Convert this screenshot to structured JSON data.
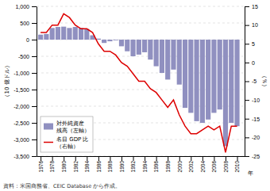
{
  "chart_data": {
    "type": "bar",
    "x": [
      1976,
      1977,
      1978,
      1979,
      1980,
      1981,
      1982,
      1983,
      1984,
      1985,
      1986,
      1987,
      1988,
      1989,
      1990,
      1991,
      1992,
      1993,
      1994,
      1995,
      1996,
      1997,
      1998,
      1999,
      2000,
      2001,
      2002,
      2003,
      2004,
      2005,
      2006,
      2007,
      2008,
      2009,
      2010
    ],
    "series": [
      {
        "name": "対外純資産\n残高（左軸）",
        "type": "bar",
        "color": "#9090c0",
        "values": [
          150,
          170,
          350,
          380,
          390,
          350,
          380,
          350,
          320,
          130,
          30,
          -100,
          -50,
          -20,
          -200,
          -350,
          -500,
          -450,
          -380,
          -600,
          -800,
          -1000,
          -1200,
          -900,
          -1350,
          -2050,
          -2200,
          -2450,
          -2500,
          -2400,
          -2200,
          -2100,
          -3200,
          -2500,
          -2600
        ]
      },
      {
        "name": "名目 GDP 比\n（右軸）",
        "type": "line",
        "color": "#dd0000",
        "axis": "y2",
        "values": [
          8.0,
          8.0,
          10.0,
          10.0,
          13.0,
          12.0,
          10.0,
          9.0,
          9.0,
          8.0,
          5.0,
          3.0,
          3.0,
          2.0,
          0.0,
          -1.0,
          -3.0,
          -5.0,
          -5.0,
          -7.0,
          -8.0,
          -10.0,
          -12.0,
          -10.0,
          -14.0,
          -17.0,
          -19.0,
          -19.0,
          -18.0,
          -17.0,
          -18.0,
          -17.0,
          -24.0,
          -17.0,
          -17.0
        ]
      }
    ],
    "xlim": [
      1975.3,
      2011.3
    ],
    "xticks": [
      1976,
      1978,
      1980,
      1982,
      1984,
      1986,
      1988,
      1990,
      1992,
      1994,
      1996,
      1998,
      2000,
      2002,
      2004,
      2006,
      2008,
      2010
    ],
    "ylim": [
      -3500,
      1000
    ],
    "yticks": [
      {
        "value": 1000,
        "label": "1,000"
      },
      500,
      0,
      -500,
      {
        "value": -1000,
        "label": "-1,000"
      },
      {
        "value": -1500,
        "label": "-1,500"
      },
      {
        "value": -2000,
        "label": "-2,000"
      },
      {
        "value": -2500,
        "label": "-2,500"
      },
      {
        "value": -3000,
        "label": "-3,000"
      },
      {
        "value": -3500,
        "label": "-3,500"
      }
    ],
    "y2lim": [
      -25,
      15
    ],
    "y2ticks": [
      15,
      10,
      5,
      0,
      -5,
      -10,
      -15,
      -20,
      -25
    ],
    "xlabel": "年",
    "ylabel": "（10 億ドル）",
    "y2label": "（％）",
    "annotations": [
      "資料：米国商務省、CEIC Database から作成。"
    ],
    "grid": true,
    "legend": "lower left"
  }
}
